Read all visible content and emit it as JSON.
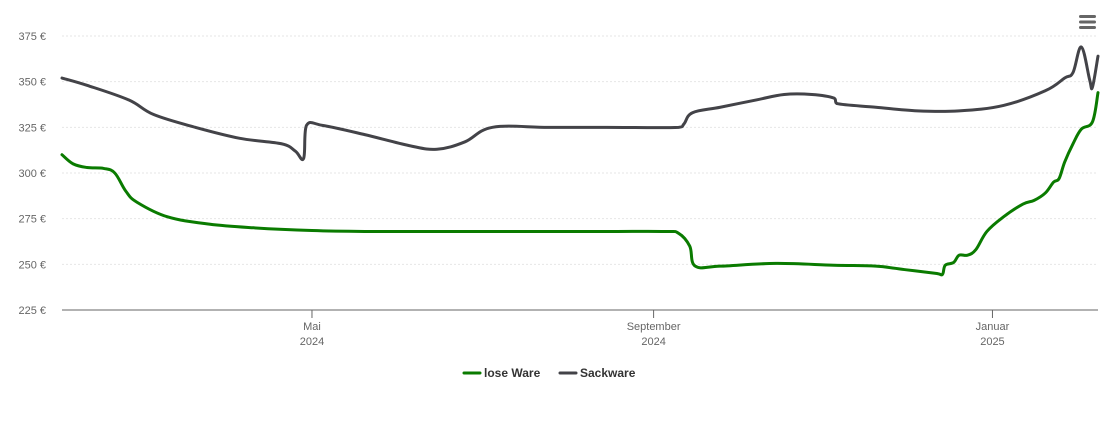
{
  "chart_data": {
    "type": "line",
    "title": "",
    "xlabel": "",
    "ylabel": "",
    "ylim": [
      225,
      375
    ],
    "y_ticks": [
      {
        "value": 225,
        "label": "225 €"
      },
      {
        "value": 250,
        "label": "250 €"
      },
      {
        "value": 275,
        "label": "275 €"
      },
      {
        "value": 300,
        "label": "300 €"
      },
      {
        "value": 325,
        "label": "325 €"
      },
      {
        "value": 350,
        "label": "350 €"
      },
      {
        "value": 375,
        "label": "375 €"
      }
    ],
    "xlim": [
      "2024-02-01",
      "2025-02-08"
    ],
    "x_ticks": [
      {
        "date": "2024-05-01",
        "month": "Mai",
        "year": "2024"
      },
      {
        "date": "2024-09-01",
        "month": "September",
        "year": "2024"
      },
      {
        "date": "2025-01-01",
        "month": "Januar",
        "year": "2025"
      }
    ],
    "grid": true,
    "legend_position": "bottom-center",
    "series": [
      {
        "name": "lose Ware",
        "color": "#0a7b00",
        "points": [
          [
            "2024-02-01",
            310
          ],
          [
            "2024-02-05",
            305
          ],
          [
            "2024-02-10",
            303
          ],
          [
            "2024-02-16",
            302.5
          ],
          [
            "2024-02-20",
            300
          ],
          [
            "2024-02-24",
            290
          ],
          [
            "2024-02-28",
            284
          ],
          [
            "2024-03-10",
            276
          ],
          [
            "2024-03-25",
            272
          ],
          [
            "2024-04-10",
            270
          ],
          [
            "2024-05-01",
            268.5
          ],
          [
            "2024-05-20",
            268
          ],
          [
            "2024-06-15",
            268
          ],
          [
            "2024-07-15",
            268
          ],
          [
            "2024-08-15",
            268
          ],
          [
            "2024-09-05",
            268
          ],
          [
            "2024-09-10",
            267
          ],
          [
            "2024-09-14",
            260
          ],
          [
            "2024-09-16",
            249
          ],
          [
            "2024-09-25",
            249
          ],
          [
            "2024-10-15",
            250.5
          ],
          [
            "2024-11-05",
            249.5
          ],
          [
            "2024-11-20",
            249
          ],
          [
            "2024-12-01",
            247
          ],
          [
            "2024-12-12",
            245
          ],
          [
            "2024-12-14",
            244.5
          ],
          [
            "2024-12-15",
            249.5
          ],
          [
            "2024-12-18",
            251
          ],
          [
            "2024-12-20",
            255
          ],
          [
            "2024-12-23",
            255
          ],
          [
            "2024-12-26",
            258
          ],
          [
            "2024-12-30",
            268
          ],
          [
            "2025-01-05",
            276
          ],
          [
            "2025-01-12",
            283
          ],
          [
            "2025-01-16",
            285
          ],
          [
            "2025-01-20",
            289
          ],
          [
            "2025-01-23",
            295
          ],
          [
            "2025-01-25",
            297
          ],
          [
            "2025-01-27",
            306
          ],
          [
            "2025-01-30",
            316
          ],
          [
            "2025-02-02",
            324
          ],
          [
            "2025-02-06",
            328
          ],
          [
            "2025-02-08",
            344
          ]
        ]
      },
      {
        "name": "Sackware",
        "color": "#434348",
        "points": [
          [
            "2024-02-01",
            352
          ],
          [
            "2024-02-10",
            348
          ],
          [
            "2024-02-25",
            340
          ],
          [
            "2024-03-05",
            332
          ],
          [
            "2024-03-20",
            325
          ],
          [
            "2024-04-05",
            319
          ],
          [
            "2024-04-20",
            316
          ],
          [
            "2024-04-25",
            312
          ],
          [
            "2024-04-28",
            308
          ],
          [
            "2024-04-29",
            326
          ],
          [
            "2024-05-05",
            326
          ],
          [
            "2024-05-20",
            321
          ],
          [
            "2024-06-05",
            315
          ],
          [
            "2024-06-15",
            313
          ],
          [
            "2024-06-25",
            317
          ],
          [
            "2024-07-05",
            325
          ],
          [
            "2024-07-25",
            325
          ],
          [
            "2024-08-15",
            325
          ],
          [
            "2024-09-10",
            325
          ],
          [
            "2024-09-12",
            327
          ],
          [
            "2024-09-15",
            333
          ],
          [
            "2024-09-25",
            336
          ],
          [
            "2024-10-08",
            340
          ],
          [
            "2024-10-18",
            343
          ],
          [
            "2024-10-28",
            343
          ],
          [
            "2024-11-05",
            341
          ],
          [
            "2024-11-06",
            338
          ],
          [
            "2024-11-20",
            336
          ],
          [
            "2024-12-05",
            334
          ],
          [
            "2024-12-20",
            334
          ],
          [
            "2025-01-05",
            337
          ],
          [
            "2025-01-20",
            345
          ],
          [
            "2025-01-27",
            352
          ],
          [
            "2025-01-30",
            355
          ],
          [
            "2025-02-02",
            369
          ],
          [
            "2025-02-05",
            351
          ],
          [
            "2025-02-06",
            347
          ],
          [
            "2025-02-08",
            364
          ]
        ]
      }
    ]
  },
  "menu": {
    "icon": "hamburger-menu-icon"
  }
}
